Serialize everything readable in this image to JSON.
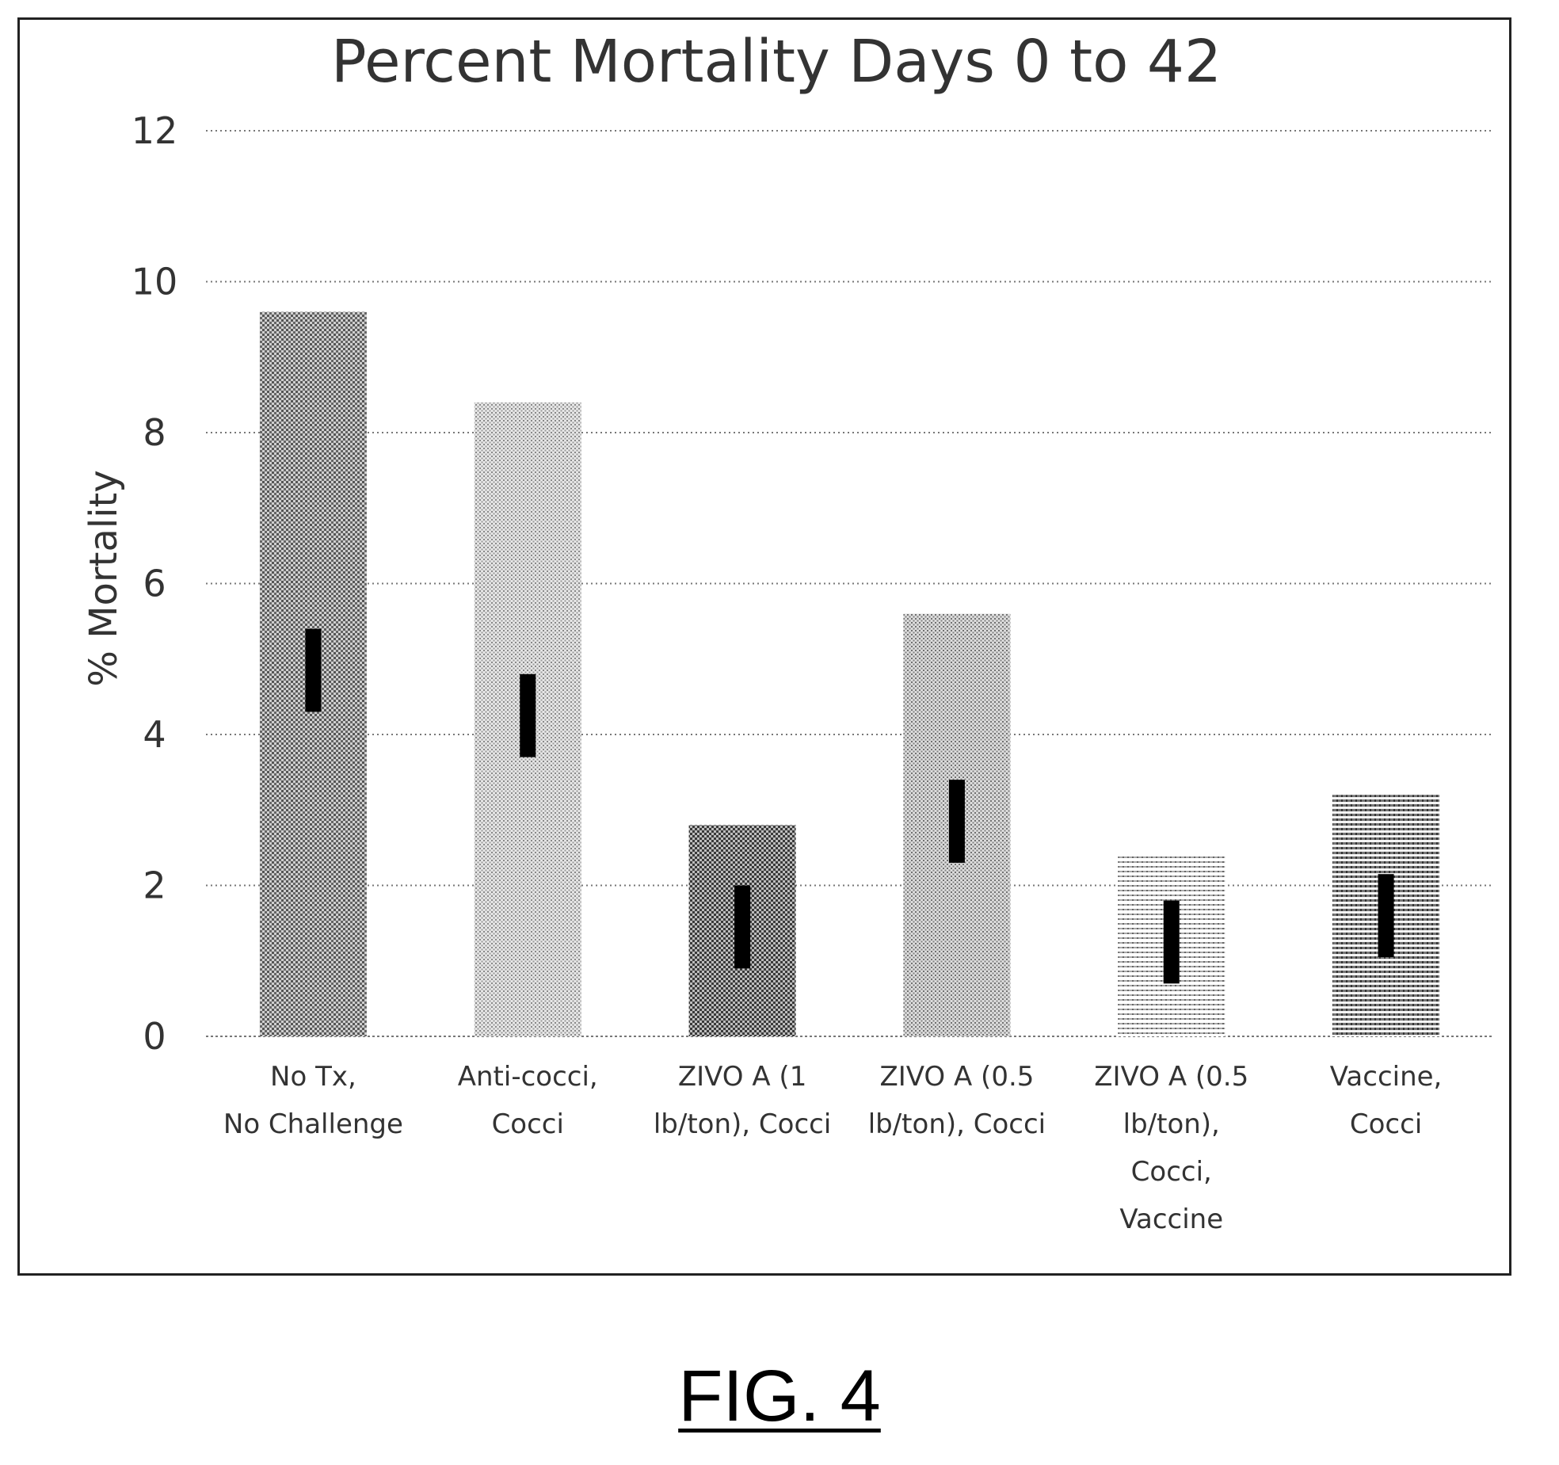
{
  "figure_caption": "FIG. 4",
  "chart_data": {
    "type": "bar",
    "title": "Percent Mortality Days 0 to 42",
    "xlabel": "",
    "ylabel": "% Mortality",
    "ylim": [
      0,
      12
    ],
    "yticks": [
      0,
      2,
      4,
      6,
      8,
      10,
      12
    ],
    "grid": true,
    "legend": "none",
    "categories": [
      [
        "No Tx,",
        "No Challenge"
      ],
      [
        "Anti-cocci,",
        "Cocci"
      ],
      [
        "ZIVO A (1",
        "lb/ton), Cocci"
      ],
      [
        "ZIVO A (0.5",
        "lb/ton), Cocci"
      ],
      [
        "ZIVO A (0.5",
        "lb/ton),",
        "Cocci,",
        "Vaccine"
      ],
      [
        "Vaccine,",
        "Cocci"
      ]
    ],
    "values": [
      9.6,
      8.4,
      2.8,
      5.6,
      2.4,
      3.2
    ],
    "error_bars": [
      {
        "low": 4.3,
        "high": 5.4
      },
      {
        "low": 3.7,
        "high": 4.8
      },
      {
        "low": 0.9,
        "high": 2.0
      },
      {
        "low": 2.3,
        "high": 3.4
      },
      {
        "low": 0.7,
        "high": 1.8
      },
      {
        "low": 1.05,
        "high": 2.15
      }
    ],
    "fill_patterns": [
      "dots-dark",
      "dots-light",
      "checker-dark",
      "dots-medium",
      "stripes-light",
      "stripes-dark"
    ]
  }
}
